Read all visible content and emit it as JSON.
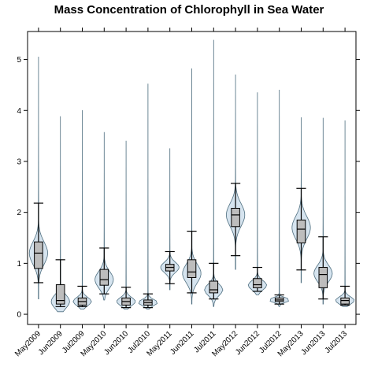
{
  "chart_data": {
    "type": "violin",
    "title": "Mass Concentration of Chlorophyll in Sea Water",
    "xlabel": "",
    "ylabel": "",
    "ylim": [
      -0.2,
      5.55
    ],
    "yticks": [
      0,
      1,
      2,
      3,
      4,
      5
    ],
    "grid": false,
    "legend": "none",
    "colors": {
      "violin_fill": "#d6e4ef",
      "violin_stroke": "#4f6f80",
      "box_fill": "#bdbdbd",
      "line": "#000000"
    },
    "categories": [
      "May2009",
      "Jun2009",
      "Jul2009",
      "May2010",
      "Jun2010",
      "Jul2010",
      "May2011",
      "Jun2011",
      "Jul2011",
      "May2012",
      "Jun2012",
      "Jul2012",
      "May2013",
      "Jun2013",
      "Jul2013"
    ],
    "series": [
      {
        "label": "May2009",
        "min": 0.3,
        "max": 5.05,
        "whisker_low": 0.62,
        "q1": 0.9,
        "median": 1.2,
        "q3": 1.42,
        "whisker_high": 2.18,
        "mode": 1.2,
        "spread": 0.22
      },
      {
        "label": "Jun2009",
        "min": 0.05,
        "max": 3.88,
        "whisker_low": 0.15,
        "q1": 0.2,
        "median": 0.27,
        "q3": 0.58,
        "whisker_high": 1.07,
        "mode": 0.25,
        "spread": 0.13
      },
      {
        "label": "Jul2009",
        "min": 0.1,
        "max": 4.0,
        "whisker_low": 0.15,
        "q1": 0.18,
        "median": 0.25,
        "q3": 0.32,
        "whisker_high": 0.55,
        "mode": 0.25,
        "spread": 0.08
      },
      {
        "label": "May2010",
        "min": 0.28,
        "max": 3.57,
        "whisker_low": 0.4,
        "q1": 0.57,
        "median": 0.68,
        "q3": 0.88,
        "whisker_high": 1.3,
        "mode": 0.68,
        "spread": 0.16
      },
      {
        "label": "Jun2010",
        "min": 0.1,
        "max": 3.4,
        "whisker_low": 0.13,
        "q1": 0.18,
        "median": 0.25,
        "q3": 0.32,
        "whisker_high": 0.53,
        "mode": 0.25,
        "spread": 0.08
      },
      {
        "label": "Jul2010",
        "min": 0.1,
        "max": 4.52,
        "whisker_low": 0.13,
        "q1": 0.18,
        "median": 0.23,
        "q3": 0.28,
        "whisker_high": 0.4,
        "mode": 0.23,
        "spread": 0.06
      },
      {
        "label": "May2011",
        "min": 0.48,
        "max": 3.25,
        "whisker_low": 0.6,
        "q1": 0.85,
        "median": 0.92,
        "q3": 0.98,
        "whisker_high": 1.23,
        "mode": 0.92,
        "spread": 0.1
      },
      {
        "label": "Jun2011",
        "min": 0.2,
        "max": 4.82,
        "whisker_low": 0.42,
        "q1": 0.72,
        "median": 0.83,
        "q3": 1.07,
        "whisker_high": 1.63,
        "mode": 0.8,
        "spread": 0.18
      },
      {
        "label": "Jul2011",
        "min": 0.15,
        "max": 5.38,
        "whisker_low": 0.3,
        "q1": 0.42,
        "median": 0.48,
        "q3": 0.65,
        "whisker_high": 1.0,
        "mode": 0.48,
        "spread": 0.11
      },
      {
        "label": "May2012",
        "min": 0.88,
        "max": 4.7,
        "whisker_low": 1.15,
        "q1": 1.72,
        "median": 1.95,
        "q3": 2.08,
        "whisker_high": 2.57,
        "mode": 1.95,
        "spread": 0.22
      },
      {
        "label": "Jun2012",
        "min": 0.38,
        "max": 4.35,
        "whisker_low": 0.45,
        "q1": 0.52,
        "median": 0.58,
        "q3": 0.7,
        "whisker_high": 0.92,
        "mode": 0.57,
        "spread": 0.09
      },
      {
        "label": "Jul2012",
        "min": 0.15,
        "max": 4.4,
        "whisker_low": 0.2,
        "q1": 0.25,
        "median": 0.28,
        "q3": 0.32,
        "whisker_high": 0.38,
        "mode": 0.28,
        "spread": 0.04
      },
      {
        "label": "May2013",
        "min": 0.62,
        "max": 3.86,
        "whisker_low": 0.87,
        "q1": 1.4,
        "median": 1.67,
        "q3": 1.85,
        "whisker_high": 2.47,
        "mode": 1.7,
        "spread": 0.22
      },
      {
        "label": "Jun2013",
        "min": 0.2,
        "max": 3.85,
        "whisker_low": 0.3,
        "q1": 0.52,
        "median": 0.78,
        "q3": 0.92,
        "whisker_high": 1.52,
        "mode": 0.8,
        "spread": 0.16
      },
      {
        "label": "Jul2013",
        "min": 0.15,
        "max": 3.8,
        "whisker_low": 0.18,
        "q1": 0.2,
        "median": 0.27,
        "q3": 0.32,
        "whisker_high": 0.55,
        "mode": 0.27,
        "spread": 0.07
      }
    ]
  }
}
